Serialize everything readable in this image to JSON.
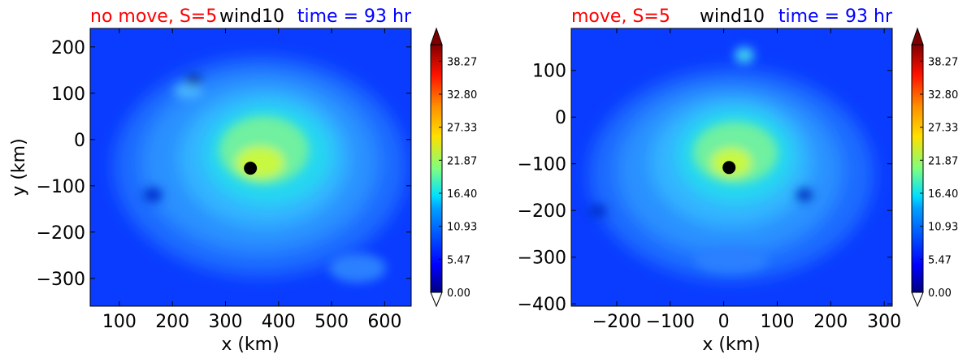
{
  "colors": {
    "title_left": "#ff0000",
    "title_mid": "#000000",
    "title_right": "#0000ff",
    "marker": "#000000"
  },
  "chart_data": [
    {
      "type": "heatmap",
      "title_left": "no move, S=5",
      "title_mid": "wind10",
      "title_right": "time = 93 hr",
      "xlabel": "x (km)",
      "ylabel": "y (km)",
      "xlim": [
        45,
        650
      ],
      "ylim": [
        -360,
        240
      ],
      "xticks": [
        100,
        200,
        300,
        400,
        500,
        600
      ],
      "yticks": [
        200,
        100,
        0,
        -100,
        -200,
        -300
      ],
      "center": [
        347,
        -62
      ],
      "colorbar": {
        "min": 0.0,
        "max": 41.0,
        "ticks": [
          "38.27",
          "32.80",
          "27.33",
          "21.87",
          "16.40",
          "10.93",
          "5.47",
          "0.00"
        ],
        "extend": "both"
      }
    },
    {
      "type": "heatmap",
      "title_left": "move, S=5",
      "title_mid": "wind10",
      "title_right": "time = 93 hr",
      "xlabel": "x (km)",
      "ylabel": "",
      "xlim": [
        -285,
        315
      ],
      "ylim": [
        -405,
        190
      ],
      "xticks": [
        -200,
        -100,
        0,
        100,
        200,
        300
      ],
      "yticks": [
        100,
        0,
        -100,
        -200,
        -300,
        -400
      ],
      "center": [
        10,
        -108
      ],
      "colorbar": {
        "min": 0.0,
        "max": 41.0,
        "ticks": [
          "38.27",
          "32.80",
          "27.33",
          "21.87",
          "16.40",
          "10.93",
          "5.47",
          "0.00"
        ],
        "extend": "both"
      }
    }
  ]
}
